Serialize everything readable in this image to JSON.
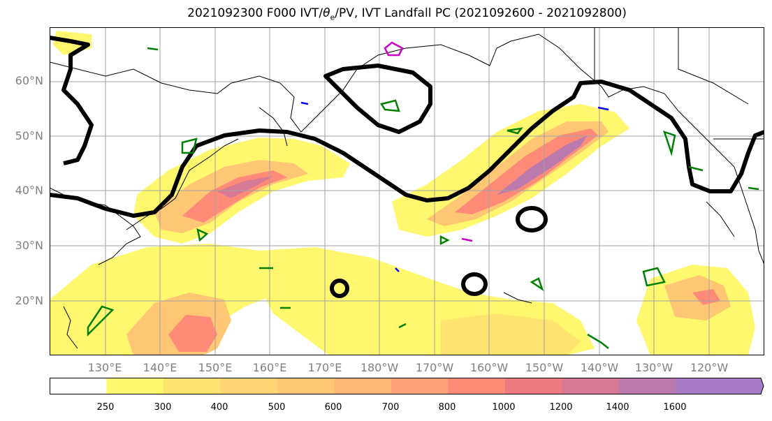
{
  "title": {
    "prefix": "2021092300 F000 IVT/",
    "theta": "θ",
    "sub": "e",
    "suffix": "/PV, IVT Landfall PC (2021092600 - 2021092800)"
  },
  "colors": {
    "land_line": "#000000",
    "grid": "#a0a0a0",
    "theta_e_contour": "#000000",
    "pv_green": "#008000",
    "pv_blue": "#0000ff",
    "pv_magenta": "#cc00cc"
  },
  "map": {
    "lat_labels": [
      "20°N",
      "30°N",
      "40°N",
      "50°N",
      "60°N"
    ],
    "lon_labels": [
      "130°E",
      "140°E",
      "150°E",
      "160°E",
      "170°E",
      "180°W",
      "170°W",
      "160°W",
      "150°W",
      "140°W",
      "130°W",
      "120°W"
    ]
  },
  "colorbar": {
    "ticks": [
      "250",
      "300",
      "400",
      "500",
      "600",
      "700",
      "800",
      "1000",
      "1200",
      "1400",
      "1600"
    ],
    "colors": [
      "#ffffff",
      "#fff86e",
      "#ffe371",
      "#ffd472",
      "#ffc674",
      "#ffb777",
      "#ffa278",
      "#ff8a78",
      "#ef7a82",
      "#d77994",
      "#bb7aae",
      "#a87ac3",
      "#a87ac3"
    ]
  }
}
